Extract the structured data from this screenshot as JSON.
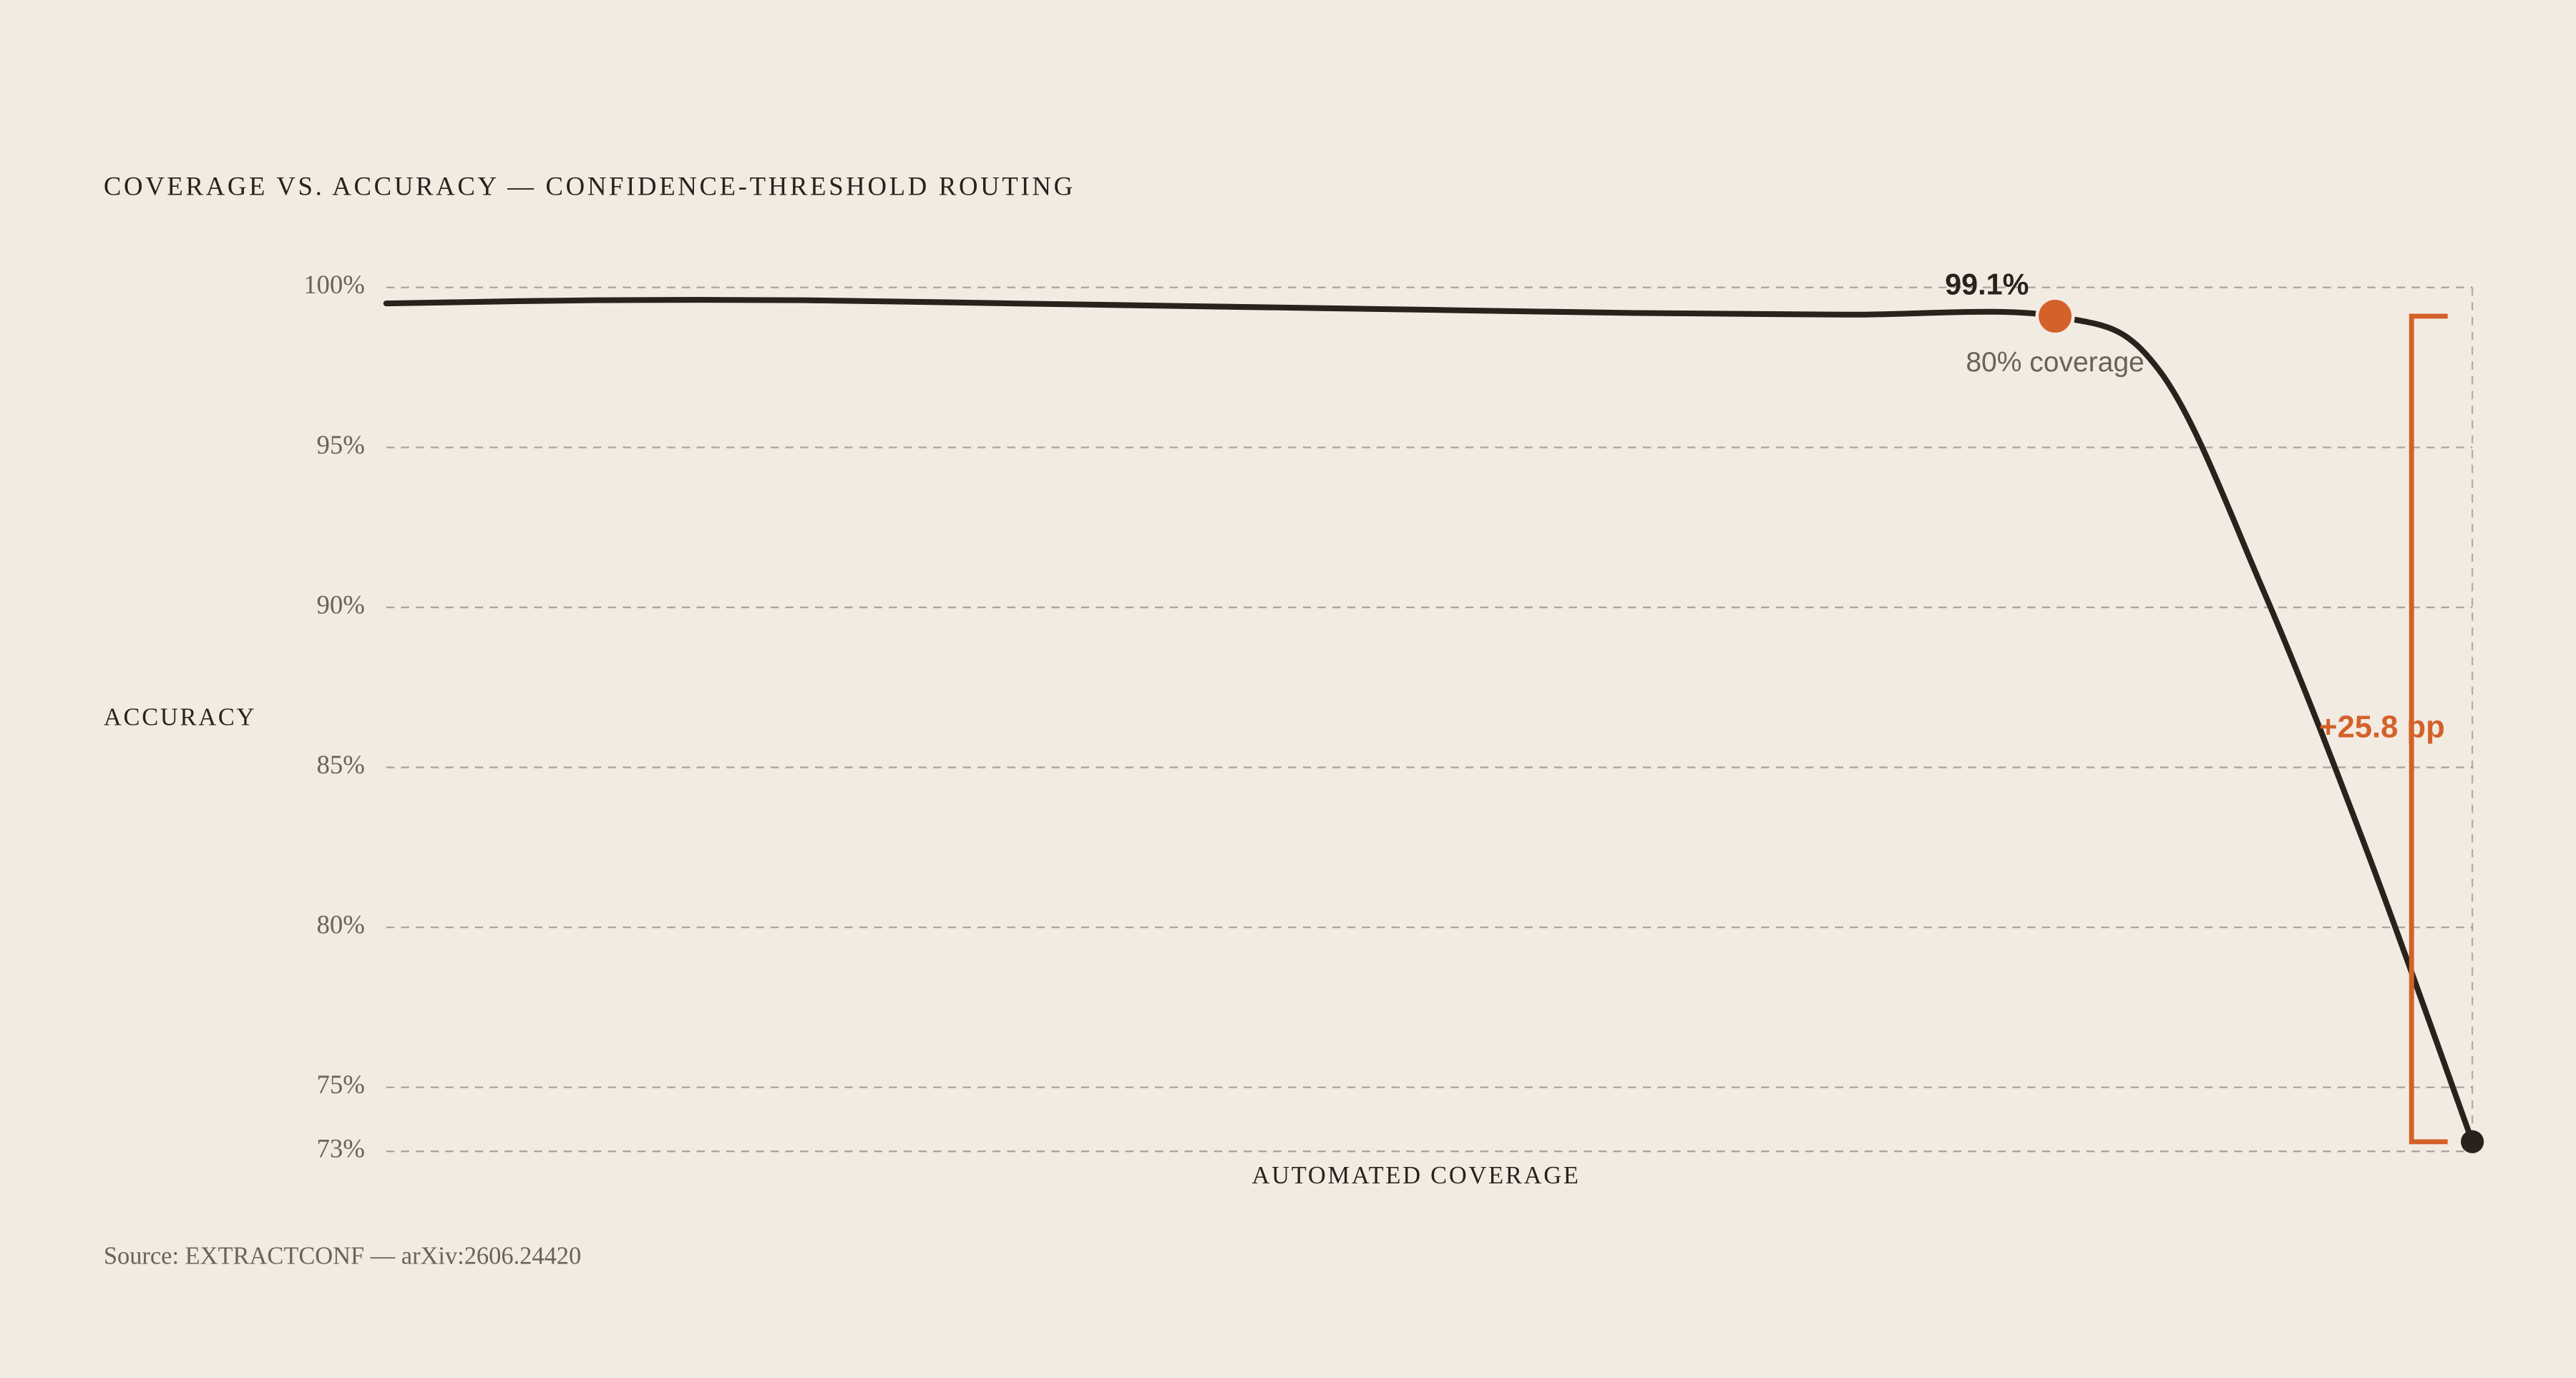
{
  "chart_data": {
    "type": "line",
    "title": "COVERAGE VS. ACCURACY — CONFIDENCE-THRESHOLD ROUTING",
    "y_label": "ACCURACY",
    "x_label": "AUTOMATED COVERAGE",
    "source": "Source: EXTRACTCONF — arXiv:2606.24420",
    "x": [
      0,
      10,
      20,
      30,
      40,
      50,
      60,
      70,
      80,
      85,
      90,
      95,
      100
    ],
    "xlim": [
      0,
      100
    ],
    "series": [
      {
        "color": "#2a211c",
        "values": [
          99.5,
          99.6,
          99.6,
          99.5,
          99.4,
          99.3,
          99.2,
          99.15,
          99.1,
          97.4,
          90.5,
          82.3,
          73.3
        ]
      }
    ],
    "ylim": [
      73,
      100
    ],
    "yticks": [
      {
        "value": 100,
        "label": "100%"
      },
      {
        "value": 95,
        "label": "95%"
      },
      {
        "value": 90,
        "label": "90%"
      },
      {
        "value": 85,
        "label": "85%"
      },
      {
        "value": 80,
        "label": "80%"
      },
      {
        "value": 75,
        "label": "75%"
      },
      {
        "value": 73,
        "label": "73%"
      }
    ],
    "grid": true,
    "markers": [
      {
        "x": 80,
        "y": 99.1,
        "color": "#d4612a",
        "label": "99.1%",
        "note": "80% coverage"
      },
      {
        "x": 100,
        "y": 73.3,
        "color": "#2a211c"
      }
    ],
    "gap": {
      "label": "+25.8 pp",
      "values": [
        99.1,
        73.3
      ],
      "color": "#d4612a"
    }
  }
}
